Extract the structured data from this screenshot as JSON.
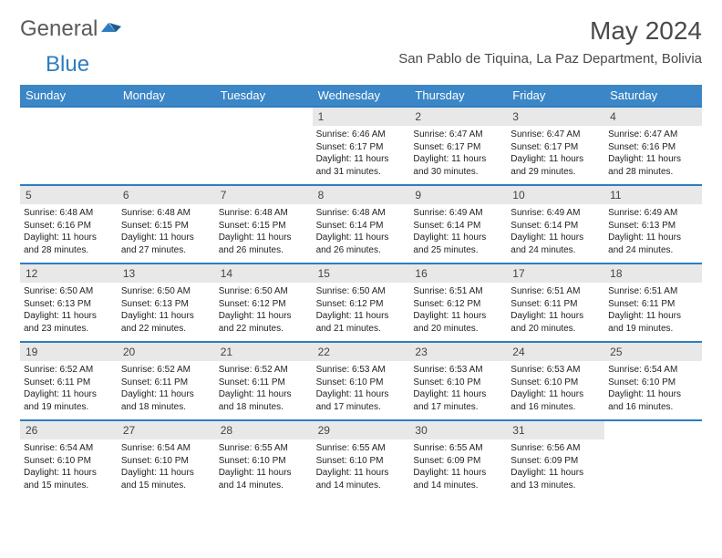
{
  "logo": {
    "part1": "General",
    "part2": "Blue"
  },
  "title": "May 2024",
  "location": "San Pablo de Tiquina, La Paz Department, Bolivia",
  "colors": {
    "header_bg": "#3b86c6",
    "header_text": "#ffffff",
    "border": "#2d7dc0",
    "daynum_bg": "#e8e8e8",
    "text": "#222222",
    "logo_general": "#5a5a5a",
    "logo_blue": "#2d7dc0"
  },
  "dayNames": [
    "Sunday",
    "Monday",
    "Tuesday",
    "Wednesday",
    "Thursday",
    "Friday",
    "Saturday"
  ],
  "weeks": [
    [
      {
        "empty": true
      },
      {
        "empty": true
      },
      {
        "empty": true
      },
      {
        "day": "1",
        "sunrise": "Sunrise: 6:46 AM",
        "sunset": "Sunset: 6:17 PM",
        "dl1": "Daylight: 11 hours",
        "dl2": "and 31 minutes."
      },
      {
        "day": "2",
        "sunrise": "Sunrise: 6:47 AM",
        "sunset": "Sunset: 6:17 PM",
        "dl1": "Daylight: 11 hours",
        "dl2": "and 30 minutes."
      },
      {
        "day": "3",
        "sunrise": "Sunrise: 6:47 AM",
        "sunset": "Sunset: 6:17 PM",
        "dl1": "Daylight: 11 hours",
        "dl2": "and 29 minutes."
      },
      {
        "day": "4",
        "sunrise": "Sunrise: 6:47 AM",
        "sunset": "Sunset: 6:16 PM",
        "dl1": "Daylight: 11 hours",
        "dl2": "and 28 minutes."
      }
    ],
    [
      {
        "day": "5",
        "sunrise": "Sunrise: 6:48 AM",
        "sunset": "Sunset: 6:16 PM",
        "dl1": "Daylight: 11 hours",
        "dl2": "and 28 minutes."
      },
      {
        "day": "6",
        "sunrise": "Sunrise: 6:48 AM",
        "sunset": "Sunset: 6:15 PM",
        "dl1": "Daylight: 11 hours",
        "dl2": "and 27 minutes."
      },
      {
        "day": "7",
        "sunrise": "Sunrise: 6:48 AM",
        "sunset": "Sunset: 6:15 PM",
        "dl1": "Daylight: 11 hours",
        "dl2": "and 26 minutes."
      },
      {
        "day": "8",
        "sunrise": "Sunrise: 6:48 AM",
        "sunset": "Sunset: 6:14 PM",
        "dl1": "Daylight: 11 hours",
        "dl2": "and 26 minutes."
      },
      {
        "day": "9",
        "sunrise": "Sunrise: 6:49 AM",
        "sunset": "Sunset: 6:14 PM",
        "dl1": "Daylight: 11 hours",
        "dl2": "and 25 minutes."
      },
      {
        "day": "10",
        "sunrise": "Sunrise: 6:49 AM",
        "sunset": "Sunset: 6:14 PM",
        "dl1": "Daylight: 11 hours",
        "dl2": "and 24 minutes."
      },
      {
        "day": "11",
        "sunrise": "Sunrise: 6:49 AM",
        "sunset": "Sunset: 6:13 PM",
        "dl1": "Daylight: 11 hours",
        "dl2": "and 24 minutes."
      }
    ],
    [
      {
        "day": "12",
        "sunrise": "Sunrise: 6:50 AM",
        "sunset": "Sunset: 6:13 PM",
        "dl1": "Daylight: 11 hours",
        "dl2": "and 23 minutes."
      },
      {
        "day": "13",
        "sunrise": "Sunrise: 6:50 AM",
        "sunset": "Sunset: 6:13 PM",
        "dl1": "Daylight: 11 hours",
        "dl2": "and 22 minutes."
      },
      {
        "day": "14",
        "sunrise": "Sunrise: 6:50 AM",
        "sunset": "Sunset: 6:12 PM",
        "dl1": "Daylight: 11 hours",
        "dl2": "and 22 minutes."
      },
      {
        "day": "15",
        "sunrise": "Sunrise: 6:50 AM",
        "sunset": "Sunset: 6:12 PM",
        "dl1": "Daylight: 11 hours",
        "dl2": "and 21 minutes."
      },
      {
        "day": "16",
        "sunrise": "Sunrise: 6:51 AM",
        "sunset": "Sunset: 6:12 PM",
        "dl1": "Daylight: 11 hours",
        "dl2": "and 20 minutes."
      },
      {
        "day": "17",
        "sunrise": "Sunrise: 6:51 AM",
        "sunset": "Sunset: 6:11 PM",
        "dl1": "Daylight: 11 hours",
        "dl2": "and 20 minutes."
      },
      {
        "day": "18",
        "sunrise": "Sunrise: 6:51 AM",
        "sunset": "Sunset: 6:11 PM",
        "dl1": "Daylight: 11 hours",
        "dl2": "and 19 minutes."
      }
    ],
    [
      {
        "day": "19",
        "sunrise": "Sunrise: 6:52 AM",
        "sunset": "Sunset: 6:11 PM",
        "dl1": "Daylight: 11 hours",
        "dl2": "and 19 minutes."
      },
      {
        "day": "20",
        "sunrise": "Sunrise: 6:52 AM",
        "sunset": "Sunset: 6:11 PM",
        "dl1": "Daylight: 11 hours",
        "dl2": "and 18 minutes."
      },
      {
        "day": "21",
        "sunrise": "Sunrise: 6:52 AM",
        "sunset": "Sunset: 6:11 PM",
        "dl1": "Daylight: 11 hours",
        "dl2": "and 18 minutes."
      },
      {
        "day": "22",
        "sunrise": "Sunrise: 6:53 AM",
        "sunset": "Sunset: 6:10 PM",
        "dl1": "Daylight: 11 hours",
        "dl2": "and 17 minutes."
      },
      {
        "day": "23",
        "sunrise": "Sunrise: 6:53 AM",
        "sunset": "Sunset: 6:10 PM",
        "dl1": "Daylight: 11 hours",
        "dl2": "and 17 minutes."
      },
      {
        "day": "24",
        "sunrise": "Sunrise: 6:53 AM",
        "sunset": "Sunset: 6:10 PM",
        "dl1": "Daylight: 11 hours",
        "dl2": "and 16 minutes."
      },
      {
        "day": "25",
        "sunrise": "Sunrise: 6:54 AM",
        "sunset": "Sunset: 6:10 PM",
        "dl1": "Daylight: 11 hours",
        "dl2": "and 16 minutes."
      }
    ],
    [
      {
        "day": "26",
        "sunrise": "Sunrise: 6:54 AM",
        "sunset": "Sunset: 6:10 PM",
        "dl1": "Daylight: 11 hours",
        "dl2": "and 15 minutes."
      },
      {
        "day": "27",
        "sunrise": "Sunrise: 6:54 AM",
        "sunset": "Sunset: 6:10 PM",
        "dl1": "Daylight: 11 hours",
        "dl2": "and 15 minutes."
      },
      {
        "day": "28",
        "sunrise": "Sunrise: 6:55 AM",
        "sunset": "Sunset: 6:10 PM",
        "dl1": "Daylight: 11 hours",
        "dl2": "and 14 minutes."
      },
      {
        "day": "29",
        "sunrise": "Sunrise: 6:55 AM",
        "sunset": "Sunset: 6:10 PM",
        "dl1": "Daylight: 11 hours",
        "dl2": "and 14 minutes."
      },
      {
        "day": "30",
        "sunrise": "Sunrise: 6:55 AM",
        "sunset": "Sunset: 6:09 PM",
        "dl1": "Daylight: 11 hours",
        "dl2": "and 14 minutes."
      },
      {
        "day": "31",
        "sunrise": "Sunrise: 6:56 AM",
        "sunset": "Sunset: 6:09 PM",
        "dl1": "Daylight: 11 hours",
        "dl2": "and 13 minutes."
      },
      {
        "empty": true
      }
    ]
  ]
}
